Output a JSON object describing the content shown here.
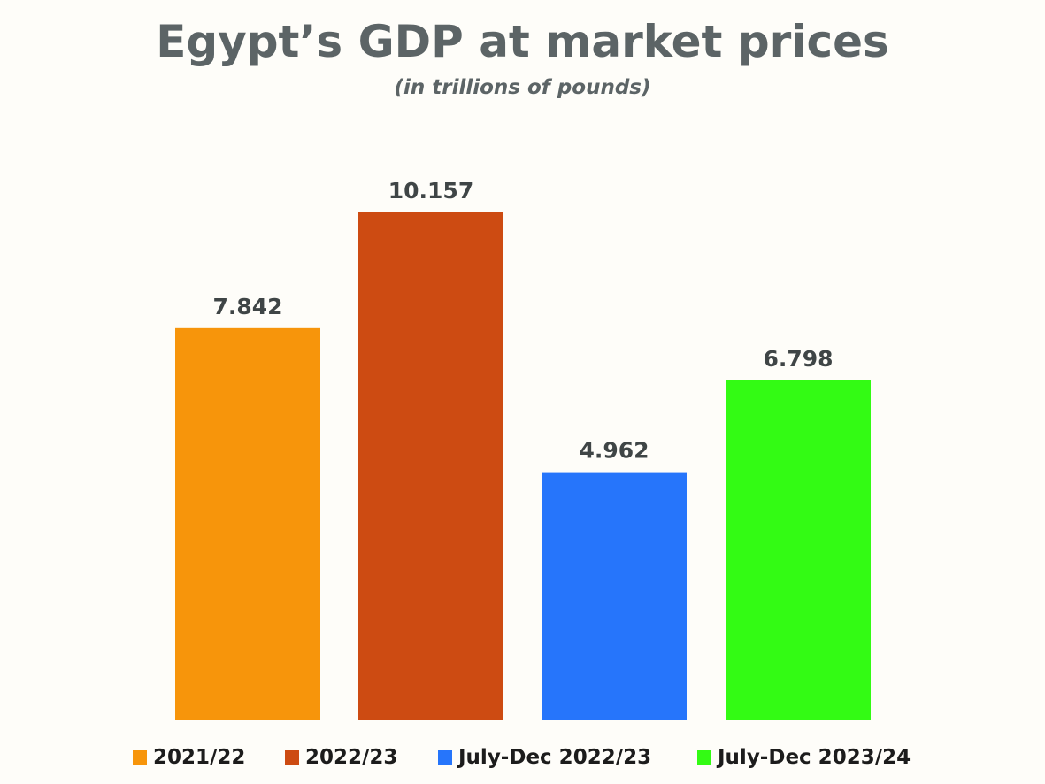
{
  "chart_data": {
    "type": "bar",
    "title": "Egypt’s GDP at market prices",
    "subtitle": "(in trillions of pounds)",
    "xlabel": "",
    "ylabel": "",
    "ylim": [
      0,
      10.157
    ],
    "grid": false,
    "legend_position": "bottom",
    "categories": [
      "2021/22",
      "2022/23",
      "July-Dec 2022/23",
      "July-Dec 2023/24"
    ],
    "values": [
      7.842,
      10.157,
      4.962,
      6.798
    ],
    "value_labels": [
      "7.842",
      "10.157",
      "4.962",
      "6.798"
    ],
    "colors": [
      "#f7950b",
      "#cd4b12",
      "#2675fb",
      "#33fb14"
    ]
  }
}
